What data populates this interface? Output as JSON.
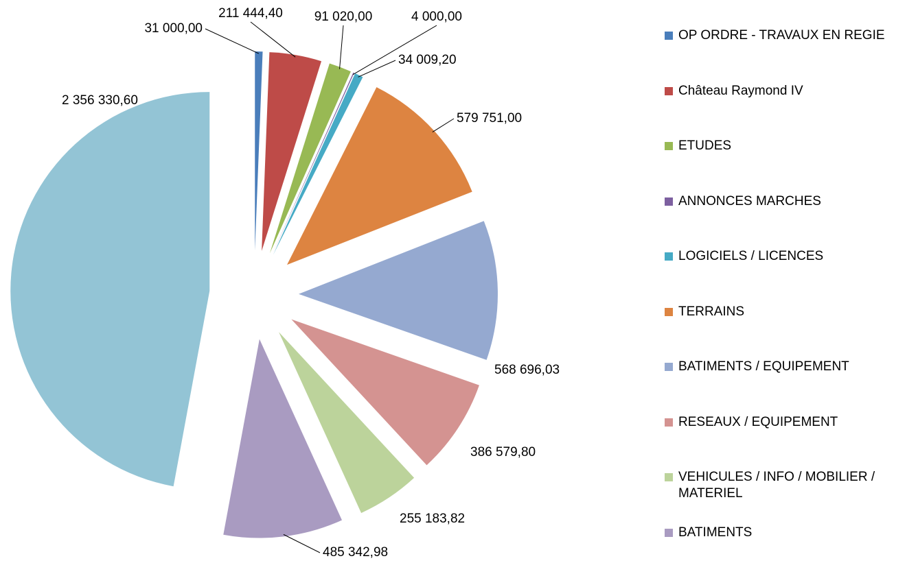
{
  "chart_data": {
    "type": "pie",
    "categories": [
      "OP ORDRE - TRAVAUX EN REGIE",
      "Château Raymond IV",
      "ETUDES",
      "ANNONCES MARCHES",
      "LOGICIELS / LICENCES",
      "TERRAINS",
      "BATIMENTS / EQUIPEMENT",
      "RESEAUX / EQUIPEMENT",
      "VEHICULES / INFO / MOBILIER / MATERIEL",
      "BATIMENTS",
      null
    ],
    "values": [
      31000,
      211444.4,
      91020,
      4000,
      34009.2,
      579751,
      568696.03,
      386579.8,
      255183.82,
      485342.98,
      2356330.6
    ],
    "value_labels": [
      "31 000,00",
      "211 444,40",
      "91 020,00",
      "4 000,00",
      "34 009,20",
      "579 751,00",
      "568 696,03",
      "386 579,80",
      "255 183,82",
      "485 342,98",
      "2 356 330,60"
    ],
    "colors": [
      "#4a7ebb",
      "#be4b48",
      "#98b954",
      "#7d60a0",
      "#46aac5",
      "#dd8441",
      "#95a9d0",
      "#d49391",
      "#bcd39b",
      "#a99bc1",
      "#93c4d5"
    ],
    "legend": "right"
  }
}
